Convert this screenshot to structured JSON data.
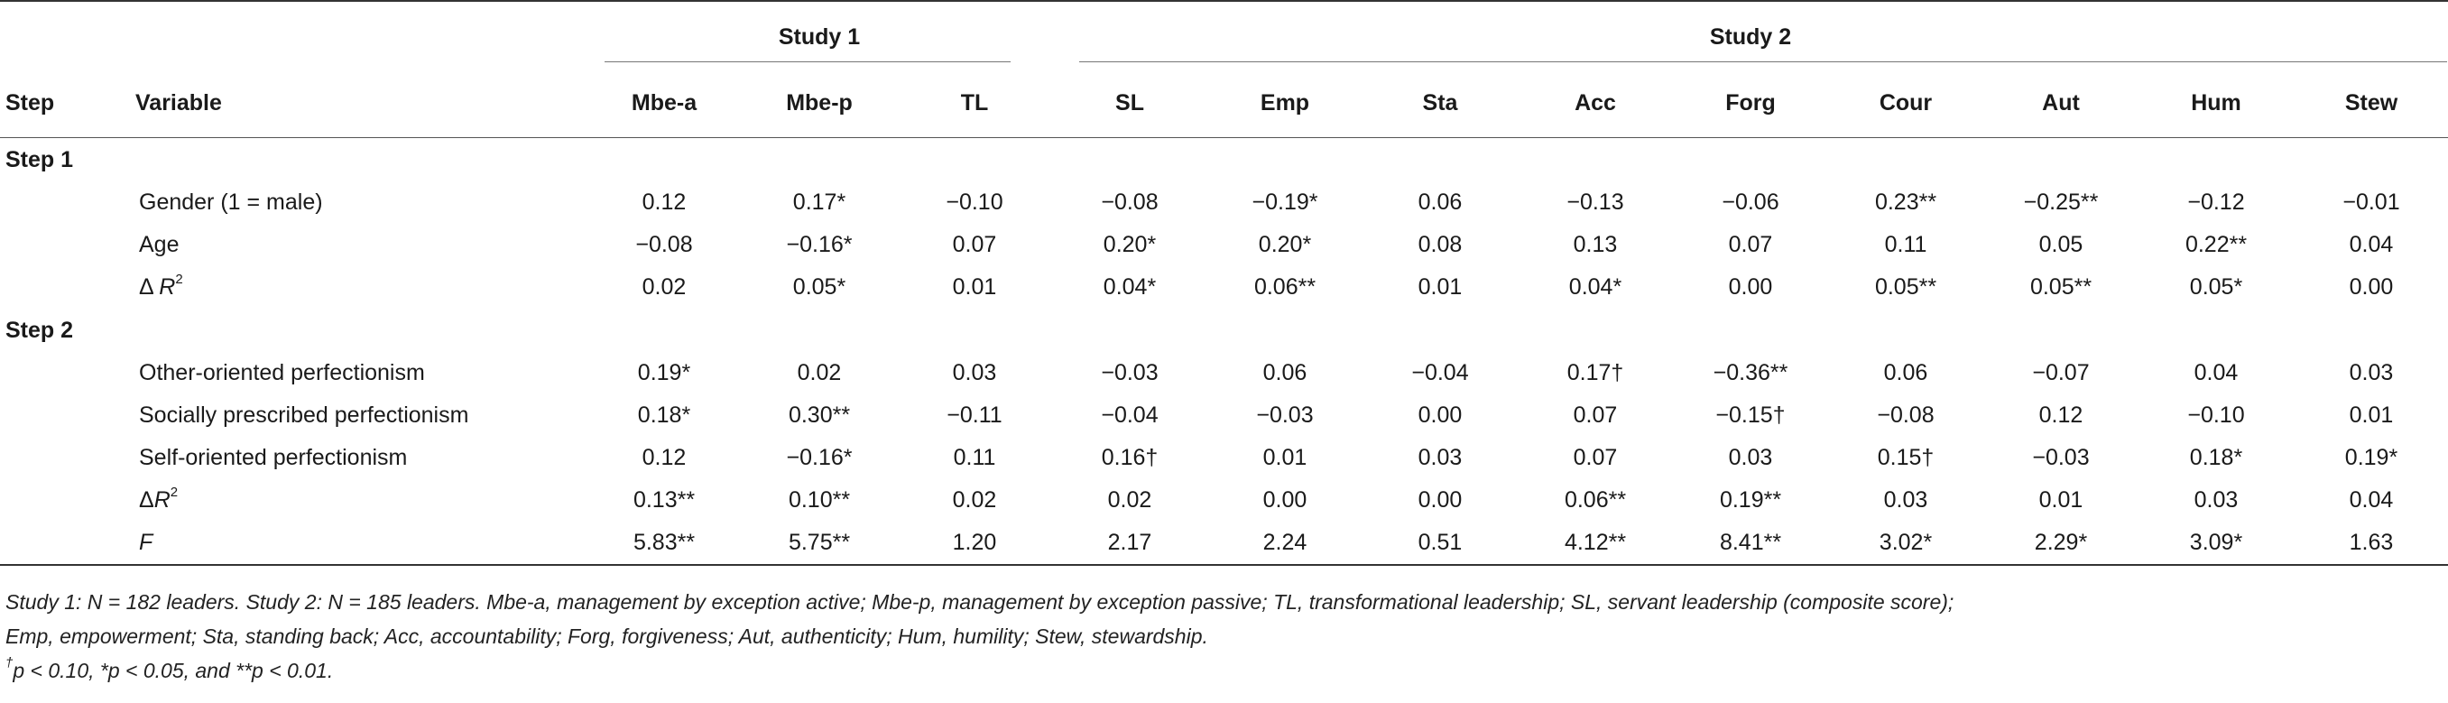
{
  "header": {
    "group_study1": "Study 1",
    "group_study2": "Study 2",
    "col_step": "Step",
    "col_variable": "Variable",
    "columns": [
      "Mbe-a",
      "Mbe-p",
      "TL",
      "SL",
      "Emp",
      "Sta",
      "Acc",
      "Forg",
      "Cour",
      "Aut",
      "Hum",
      "Stew"
    ]
  },
  "sections": [
    {
      "label": "Step 1",
      "rows": [
        {
          "variable": "Gender (1 = male)",
          "values": [
            "0.12",
            "0.17*",
            "−0.10",
            "−0.08",
            "−0.19*",
            "0.06",
            "−0.13",
            "−0.06",
            "0.23**",
            "−0.25**",
            "−0.12",
            "−0.01"
          ]
        },
        {
          "variable": "Age",
          "values": [
            "−0.08",
            "−0.16*",
            "0.07",
            "0.20*",
            "0.20*",
            "0.08",
            "0.13",
            "0.07",
            "0.11",
            "0.05",
            "0.22**",
            "0.04"
          ]
        },
        {
          "var_prefix": "Δ ",
          "var_main": "R",
          "var_sup": "2",
          "values": [
            "0.02",
            "0.05*",
            "0.01",
            "0.04*",
            "0.06**",
            "0.01",
            "0.04*",
            "0.00",
            "0.05**",
            "0.05**",
            "0.05*",
            "0.00"
          ]
        }
      ]
    },
    {
      "label": "Step 2",
      "rows": [
        {
          "variable": "Other-oriented perfectionism",
          "values": [
            "0.19*",
            "0.02",
            "0.03",
            "−0.03",
            "0.06",
            "−0.04",
            "0.17†",
            "−0.36**",
            "0.06",
            "−0.07",
            "0.04",
            "0.03"
          ]
        },
        {
          "variable": "Socially prescribed perfectionism",
          "values": [
            "0.18*",
            "0.30**",
            "−0.11",
            "−0.04",
            "−0.03",
            "0.00",
            "0.07",
            "−0.15†",
            "−0.08",
            "0.12",
            "−0.10",
            "0.01"
          ]
        },
        {
          "variable": "Self-oriented perfectionism",
          "values": [
            "0.12",
            "−0.16*",
            "0.11",
            "0.16†",
            "0.01",
            "0.03",
            "0.07",
            "0.03",
            "0.15†",
            "−0.03",
            "0.18*",
            "0.19*"
          ]
        },
        {
          "var_prefix": "Δ",
          "var_main": "R",
          "var_sup": "2",
          "values": [
            "0.13**",
            "0.10**",
            "0.02",
            "0.02",
            "0.00",
            "0.00",
            "0.06**",
            "0.19**",
            "0.03",
            "0.01",
            "0.03",
            "0.04"
          ]
        },
        {
          "var_main": "F",
          "values": [
            "5.83**",
            "5.75**",
            "1.20",
            "2.17",
            "2.24",
            "0.51",
            "4.12**",
            "8.41**",
            "3.02*",
            "2.29*",
            "3.09*",
            "1.63"
          ]
        }
      ]
    }
  ],
  "notes": {
    "line1": "Study 1: N = 182 leaders. Study 2: N = 185 leaders. Mbe-a, management by exception active; Mbe-p, management by exception passive; TL, transformational leadership; SL, servant leadership (composite score);",
    "line2": "Emp, empowerment; Sta, standing back; Acc, accountability; Forg, forgiveness; Aut, authenticity; Hum, humility; Stew, stewardship.",
    "line3_dagger": "†",
    "line3_rest": "p < 0.10, *p < 0.05, and **p < 0.01."
  }
}
